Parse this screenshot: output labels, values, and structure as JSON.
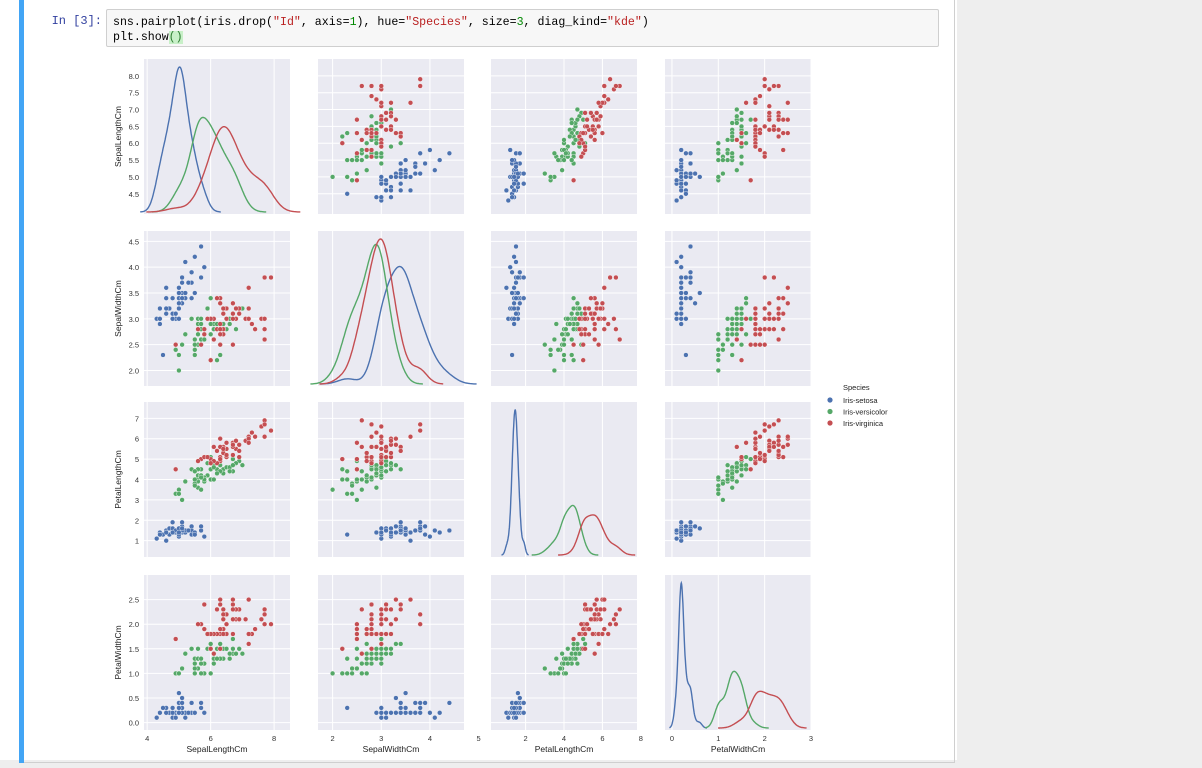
{
  "cell": {
    "prompt": "In [3]:",
    "code_line1_parts": [
      "sns.pairplot(iris.drop(",
      "\"Id\"",
      ", axis=",
      "1",
      "), hue=",
      "\"Species\"",
      ", size=",
      "3",
      ", diag_kind=",
      "\"kde\"",
      ")"
    ],
    "code_line2_parts": [
      "plt.show",
      "()"
    ]
  },
  "chart_data": {
    "type": "scatter",
    "title": "",
    "variables": [
      "SepalLengthCm",
      "SepalWidthCm",
      "PetalLengthCm",
      "PetalWidthCm"
    ],
    "diag_kind": "kde",
    "hue": "Species",
    "legend": {
      "title": "Species",
      "placement": "right",
      "entries": [
        "Iris-setosa",
        "Iris-versicolor",
        "Iris-virginica"
      ]
    },
    "colors": {
      "Iris-setosa": "#4c72b0",
      "Iris-versicolor": "#55a868",
      "Iris-virginica": "#c44e52"
    },
    "axes": {
      "SepalLengthCm": {
        "range": [
          3.9,
          8.5
        ],
        "y_ticks": [
          "4.5",
          "5.0",
          "5.5",
          "6.0",
          "6.5",
          "7.0",
          "7.5",
          "8.0"
        ],
        "x_ticks": [
          "4",
          "6",
          "8"
        ]
      },
      "SepalWidthCm": {
        "range": [
          1.7,
          4.7
        ],
        "y_ticks": [
          "2.0",
          "2.5",
          "3.0",
          "3.5",
          "4.0",
          "4.5"
        ],
        "x_ticks": [
          "2",
          "3",
          "4",
          "5"
        ]
      },
      "PetalLengthCm": {
        "range": [
          0.2,
          7.8
        ],
        "y_ticks": [
          "1",
          "2",
          "3",
          "4",
          "5",
          "6",
          "7"
        ],
        "x_ticks": [
          "2",
          "4",
          "6",
          "8"
        ]
      },
      "PetalWidthCm": {
        "range": [
          -0.15,
          3.0
        ],
        "y_ticks": [
          "0.0",
          "0.5",
          "1.0",
          "1.5",
          "2.0",
          "2.5"
        ],
        "x_ticks": [
          "0",
          "1",
          "2",
          "3"
        ]
      }
    },
    "series": [
      {
        "name": "Iris-setosa",
        "points": [
          [
            5.1,
            3.5,
            1.4,
            0.2
          ],
          [
            4.9,
            3.0,
            1.4,
            0.2
          ],
          [
            4.7,
            3.2,
            1.3,
            0.2
          ],
          [
            4.6,
            3.1,
            1.5,
            0.2
          ],
          [
            5.0,
            3.6,
            1.4,
            0.2
          ],
          [
            5.4,
            3.9,
            1.7,
            0.4
          ],
          [
            4.6,
            3.4,
            1.4,
            0.3
          ],
          [
            5.0,
            3.4,
            1.5,
            0.2
          ],
          [
            4.4,
            2.9,
            1.4,
            0.2
          ],
          [
            4.9,
            3.1,
            1.5,
            0.1
          ],
          [
            5.4,
            3.7,
            1.5,
            0.2
          ],
          [
            4.8,
            3.4,
            1.6,
            0.2
          ],
          [
            4.8,
            3.0,
            1.4,
            0.1
          ],
          [
            4.3,
            3.0,
            1.1,
            0.1
          ],
          [
            5.8,
            4.0,
            1.2,
            0.2
          ],
          [
            5.7,
            4.4,
            1.5,
            0.4
          ],
          [
            5.4,
            3.9,
            1.3,
            0.4
          ],
          [
            5.1,
            3.5,
            1.4,
            0.3
          ],
          [
            5.7,
            3.8,
            1.7,
            0.3
          ],
          [
            5.1,
            3.8,
            1.5,
            0.3
          ],
          [
            5.4,
            3.4,
            1.7,
            0.2
          ],
          [
            5.1,
            3.7,
            1.5,
            0.4
          ],
          [
            4.6,
            3.6,
            1.0,
            0.2
          ],
          [
            5.1,
            3.3,
            1.7,
            0.5
          ],
          [
            4.8,
            3.4,
            1.9,
            0.2
          ],
          [
            5.0,
            3.0,
            1.6,
            0.2
          ],
          [
            5.0,
            3.4,
            1.6,
            0.4
          ],
          [
            5.2,
            3.5,
            1.5,
            0.2
          ],
          [
            5.2,
            3.4,
            1.4,
            0.2
          ],
          [
            4.7,
            3.2,
            1.6,
            0.2
          ],
          [
            4.8,
            3.1,
            1.6,
            0.2
          ],
          [
            5.4,
            3.4,
            1.5,
            0.4
          ],
          [
            5.2,
            4.1,
            1.5,
            0.1
          ],
          [
            5.5,
            4.2,
            1.4,
            0.2
          ],
          [
            4.9,
            3.1,
            1.5,
            0.1
          ],
          [
            5.0,
            3.2,
            1.2,
            0.2
          ],
          [
            5.5,
            3.5,
            1.3,
            0.2
          ],
          [
            4.4,
            3.0,
            1.3,
            0.2
          ],
          [
            5.1,
            3.4,
            1.5,
            0.2
          ],
          [
            5.0,
            3.5,
            1.3,
            0.3
          ],
          [
            4.5,
            2.3,
            1.3,
            0.3
          ],
          [
            4.4,
            3.2,
            1.3,
            0.2
          ],
          [
            5.0,
            3.5,
            1.6,
            0.6
          ],
          [
            5.1,
            3.8,
            1.9,
            0.4
          ],
          [
            4.8,
            3.0,
            1.4,
            0.3
          ],
          [
            5.1,
            3.8,
            1.6,
            0.2
          ],
          [
            4.6,
            3.2,
            1.4,
            0.2
          ],
          [
            5.3,
            3.7,
            1.5,
            0.2
          ],
          [
            5.0,
            3.3,
            1.4,
            0.2
          ]
        ]
      },
      {
        "name": "Iris-versicolor",
        "points": [
          [
            7.0,
            3.2,
            4.7,
            1.4
          ],
          [
            6.4,
            3.2,
            4.5,
            1.5
          ],
          [
            6.9,
            3.1,
            4.9,
            1.5
          ],
          [
            5.5,
            2.3,
            4.0,
            1.3
          ],
          [
            6.5,
            2.8,
            4.6,
            1.5
          ],
          [
            5.7,
            2.8,
            4.5,
            1.3
          ],
          [
            6.3,
            3.3,
            4.7,
            1.6
          ],
          [
            4.9,
            2.4,
            3.3,
            1.0
          ],
          [
            6.6,
            2.9,
            4.6,
            1.3
          ],
          [
            5.2,
            2.7,
            3.9,
            1.4
          ],
          [
            5.0,
            2.0,
            3.5,
            1.0
          ],
          [
            5.9,
            3.0,
            4.2,
            1.5
          ],
          [
            6.0,
            2.2,
            4.0,
            1.0
          ],
          [
            6.1,
            2.9,
            4.7,
            1.4
          ],
          [
            5.6,
            2.9,
            3.6,
            1.3
          ],
          [
            6.7,
            3.1,
            4.4,
            1.4
          ],
          [
            5.6,
            3.0,
            4.5,
            1.5
          ],
          [
            5.8,
            2.7,
            4.1,
            1.0
          ],
          [
            6.2,
            2.2,
            4.5,
            1.5
          ],
          [
            5.6,
            2.5,
            3.9,
            1.1
          ],
          [
            5.9,
            3.2,
            4.8,
            1.8
          ],
          [
            6.1,
            2.8,
            4.0,
            1.3
          ],
          [
            6.3,
            2.5,
            4.9,
            1.5
          ],
          [
            6.1,
            2.8,
            4.7,
            1.2
          ],
          [
            6.4,
            2.9,
            4.3,
            1.3
          ],
          [
            6.6,
            3.0,
            4.4,
            1.4
          ],
          [
            6.8,
            2.8,
            4.8,
            1.4
          ],
          [
            6.7,
            3.0,
            5.0,
            1.7
          ],
          [
            6.0,
            2.9,
            4.5,
            1.5
          ],
          [
            5.7,
            2.6,
            3.5,
            1.0
          ],
          [
            5.5,
            2.4,
            3.8,
            1.1
          ],
          [
            5.5,
            2.4,
            3.7,
            1.0
          ],
          [
            5.8,
            2.7,
            3.9,
            1.2
          ],
          [
            6.0,
            2.7,
            5.1,
            1.6
          ],
          [
            5.4,
            3.0,
            4.5,
            1.5
          ],
          [
            6.0,
            3.4,
            4.5,
            1.6
          ],
          [
            6.7,
            3.1,
            4.7,
            1.5
          ],
          [
            6.3,
            2.3,
            4.4,
            1.3
          ],
          [
            5.6,
            3.0,
            4.1,
            1.3
          ],
          [
            5.5,
            2.5,
            4.0,
            1.3
          ],
          [
            5.5,
            2.6,
            4.4,
            1.2
          ],
          [
            6.1,
            3.0,
            4.6,
            1.4
          ],
          [
            5.8,
            2.6,
            4.0,
            1.2
          ],
          [
            5.0,
            2.3,
            3.3,
            1.0
          ],
          [
            5.6,
            2.7,
            4.2,
            1.3
          ],
          [
            5.7,
            3.0,
            4.2,
            1.2
          ],
          [
            5.7,
            2.9,
            4.2,
            1.3
          ],
          [
            6.2,
            2.9,
            4.3,
            1.3
          ],
          [
            5.1,
            2.5,
            3.0,
            1.1
          ],
          [
            5.7,
            2.8,
            4.1,
            1.3
          ]
        ]
      },
      {
        "name": "Iris-virginica",
        "points": [
          [
            6.3,
            3.3,
            6.0,
            2.5
          ],
          [
            5.8,
            2.7,
            5.1,
            1.9
          ],
          [
            7.1,
            3.0,
            5.9,
            2.1
          ],
          [
            6.3,
            2.9,
            5.6,
            1.8
          ],
          [
            6.5,
            3.0,
            5.8,
            2.2
          ],
          [
            7.6,
            3.0,
            6.6,
            2.1
          ],
          [
            4.9,
            2.5,
            4.5,
            1.7
          ],
          [
            7.3,
            2.9,
            6.3,
            1.8
          ],
          [
            6.7,
            2.5,
            5.8,
            1.8
          ],
          [
            7.2,
            3.6,
            6.1,
            2.5
          ],
          [
            6.5,
            3.2,
            5.1,
            2.0
          ],
          [
            6.4,
            2.7,
            5.3,
            1.9
          ],
          [
            6.8,
            3.0,
            5.5,
            2.1
          ],
          [
            5.7,
            2.5,
            5.0,
            2.0
          ],
          [
            5.8,
            2.8,
            5.1,
            2.4
          ],
          [
            6.4,
            3.2,
            5.3,
            2.3
          ],
          [
            6.5,
            3.0,
            5.5,
            1.8
          ],
          [
            7.7,
            3.8,
            6.7,
            2.2
          ],
          [
            7.7,
            2.6,
            6.9,
            2.3
          ],
          [
            6.0,
            2.2,
            5.0,
            1.5
          ],
          [
            6.9,
            3.2,
            5.7,
            2.3
          ],
          [
            5.6,
            2.8,
            4.9,
            2.0
          ],
          [
            7.7,
            2.8,
            6.7,
            2.0
          ],
          [
            6.3,
            2.7,
            4.9,
            1.8
          ],
          [
            6.7,
            3.3,
            5.7,
            2.1
          ],
          [
            7.2,
            3.2,
            6.0,
            1.8
          ],
          [
            6.2,
            2.8,
            4.8,
            1.8
          ],
          [
            6.1,
            3.0,
            4.9,
            1.8
          ],
          [
            6.4,
            2.8,
            5.6,
            2.1
          ],
          [
            7.2,
            3.0,
            5.8,
            1.6
          ],
          [
            7.4,
            2.8,
            6.1,
            1.9
          ],
          [
            7.9,
            3.8,
            6.4,
            2.0
          ],
          [
            6.4,
            2.8,
            5.6,
            2.2
          ],
          [
            6.3,
            2.8,
            5.1,
            1.5
          ],
          [
            6.1,
            2.6,
            5.6,
            1.4
          ],
          [
            7.7,
            3.0,
            6.1,
            2.3
          ],
          [
            6.3,
            3.4,
            5.6,
            2.4
          ],
          [
            6.4,
            3.1,
            5.5,
            1.8
          ],
          [
            6.0,
            3.0,
            4.8,
            1.8
          ],
          [
            6.9,
            3.1,
            5.4,
            2.1
          ],
          [
            6.7,
            3.1,
            5.6,
            2.4
          ],
          [
            6.9,
            3.1,
            5.1,
            2.3
          ],
          [
            6.8,
            3.2,
            5.9,
            2.3
          ],
          [
            6.7,
            3.3,
            5.7,
            2.5
          ],
          [
            6.7,
            3.0,
            5.2,
            2.3
          ],
          [
            6.3,
            2.5,
            5.0,
            1.9
          ],
          [
            6.5,
            3.0,
            5.2,
            2.0
          ],
          [
            6.2,
            3.4,
            5.4,
            2.3
          ],
          [
            5.9,
            3.0,
            5.1,
            1.8
          ]
        ]
      }
    ]
  }
}
